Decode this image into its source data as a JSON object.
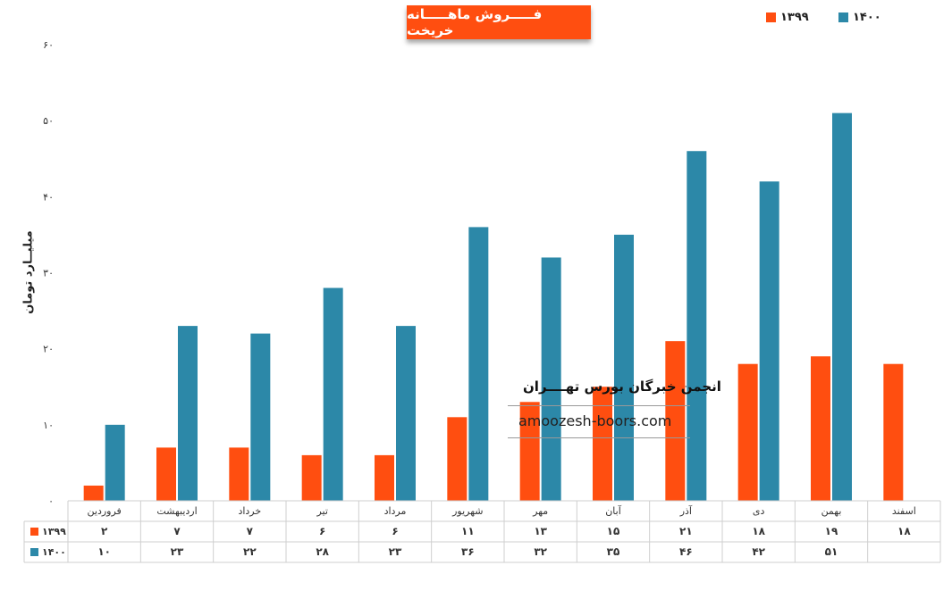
{
  "chart_data": {
    "type": "bar",
    "title": "فـــــروش ماهـــــانه خریخت",
    "ylabel": "میلیــارد تومان",
    "ylim": [
      0,
      60
    ],
    "yticks": [
      "۰",
      "۱۰",
      "۲۰",
      "۳۰",
      "۴۰",
      "۵۰",
      "۶۰"
    ],
    "legend_position": "top-right",
    "categories": [
      "فروردین",
      "اردیبهشت",
      "خرداد",
      "تیر",
      "مرداد",
      "شهریور",
      "مهر",
      "آبان",
      "آذر",
      "دی",
      "بهمن",
      "اسفند"
    ],
    "series": [
      {
        "name": "۱۳۹۹",
        "color": "#ff4e10",
        "values": [
          2,
          7,
          7,
          6,
          6,
          11,
          13,
          15,
          21,
          18,
          19,
          18
        ],
        "labels": [
          "۲",
          "۷",
          "۷",
          "۶",
          "۶",
          "۱۱",
          "۱۳",
          "۱۵",
          "۲۱",
          "۱۸",
          "۱۹",
          "۱۸"
        ]
      },
      {
        "name": "۱۴۰۰",
        "color": "#2c88a8",
        "values": [
          10,
          23,
          22,
          28,
          23,
          36,
          32,
          35,
          46,
          42,
          51,
          null
        ],
        "labels": [
          "۱۰",
          "۲۳",
          "۲۲",
          "۲۸",
          "۲۳",
          "۳۶",
          "۳۲",
          "۳۵",
          "۴۶",
          "۴۲",
          "۵۱",
          ""
        ]
      }
    ],
    "grid": false,
    "data_table": true
  },
  "watermark": {
    "line1": "انجمن خبرگان بورس تهــــران",
    "line2": "amoozesh-boors.com"
  }
}
